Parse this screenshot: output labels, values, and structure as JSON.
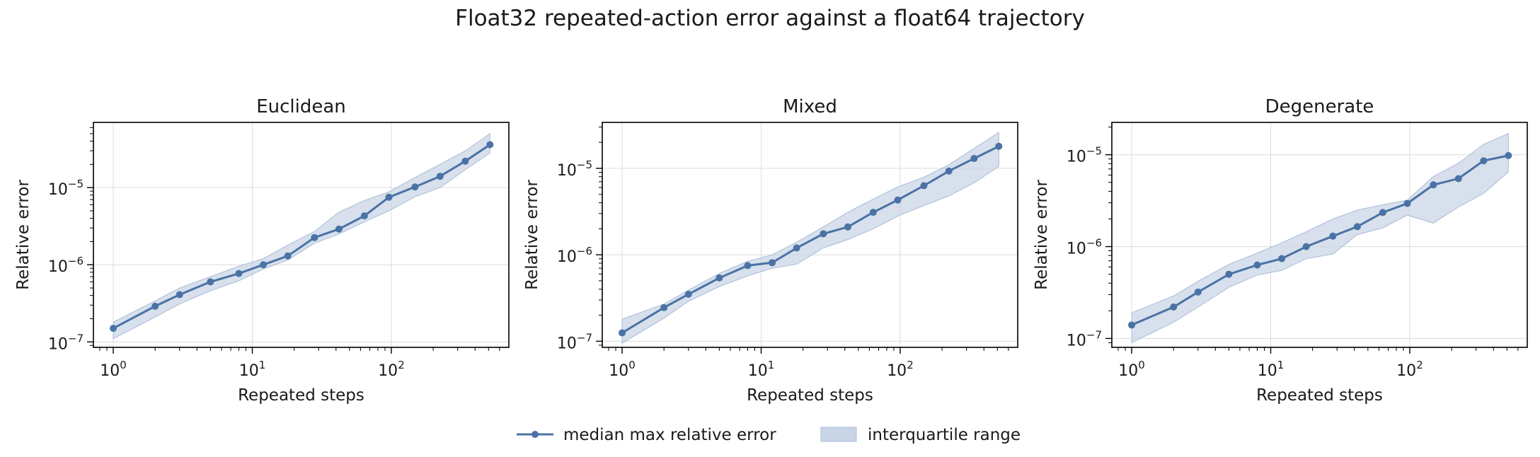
{
  "figure": {
    "title": "Float32 repeated-action error against a float64 trajectory",
    "legend": {
      "placement": "bottom-center",
      "entries": [
        {
          "key": "median",
          "label": "median max relative error"
        },
        {
          "key": "iqr",
          "label": "interquartile range"
        }
      ]
    },
    "colors": {
      "line": "#4a72a5",
      "band": "#c9d5e6",
      "band_edge": "#a8bcd8"
    }
  },
  "chart_data": [
    {
      "type": "line",
      "title": "Euclidean",
      "xlabel": "Repeated steps",
      "ylabel": "Relative error",
      "xscale": "log",
      "yscale": "log",
      "xlim": [
        0.72,
        700
      ],
      "ylim": [
        8.5e-08,
        7e-05
      ],
      "xticks": [
        1,
        10,
        100
      ],
      "yticks": [
        1e-07,
        1e-06,
        1e-05
      ],
      "grid": true,
      "x": [
        1,
        2,
        3,
        5,
        8,
        12,
        18,
        28,
        42,
        64,
        96,
        148,
        224,
        340,
        512
      ],
      "series": [
        {
          "key": "median",
          "values": [
            1.5e-07,
            2.9e-07,
            4.1e-07,
            6e-07,
            7.7e-07,
            1e-06,
            1.3e-06,
            2.25e-06,
            2.9e-06,
            4.3e-06,
            7.5e-06,
            1.02e-05,
            1.4e-05,
            2.2e-05,
            3.6e-05
          ]
        },
        {
          "key": "iqr",
          "lower": [
            1.1e-07,
            2.1e-07,
            3.1e-07,
            4.6e-07,
            6.2e-07,
            8.8e-07,
            1.15e-06,
            1.9e-06,
            2.5e-06,
            3.6e-06,
            5e-06,
            7.6e-06,
            1e-05,
            1.7e-05,
            2.8e-05
          ],
          "upper": [
            1.8e-07,
            3.4e-07,
            5e-07,
            7e-07,
            9.6e-07,
            1.2e-06,
            1.8e-06,
            2.7e-06,
            4.8e-06,
            6.8e-06,
            8.8e-06,
            1.35e-05,
            2e-05,
            3e-05,
            5e-05
          ]
        }
      ]
    },
    {
      "type": "line",
      "title": "Mixed",
      "xlabel": "Repeated steps",
      "ylabel": "Relative error",
      "xscale": "log",
      "yscale": "log",
      "xlim": [
        0.72,
        700
      ],
      "ylim": [
        8.5e-08,
        3.4e-05
      ],
      "xticks": [
        1,
        10,
        100
      ],
      "yticks": [
        1e-07,
        1e-06,
        1e-05
      ],
      "grid": true,
      "x": [
        1,
        2,
        3,
        5,
        8,
        12,
        18,
        28,
        42,
        64,
        96,
        148,
        224,
        340,
        512
      ],
      "series": [
        {
          "key": "median",
          "values": [
            1.25e-07,
            2.45e-07,
            3.5e-07,
            5.4e-07,
            7.5e-07,
            8.1e-07,
            1.2e-06,
            1.75e-06,
            2.1e-06,
            3.1e-06,
            4.3e-06,
            6.3e-06,
            9.3e-06,
            1.3e-05,
            1.8e-05
          ]
        },
        {
          "key": "iqr",
          "lower": [
            9.5e-08,
            1.85e-07,
            2.9e-07,
            4.3e-07,
            5.7e-07,
            7e-07,
            7.8e-07,
            1.2e-06,
            1.5e-06,
            2e-06,
            2.8e-06,
            3.7e-06,
            4.8e-06,
            6.8e-06,
            1.05e-05
          ]
        },
        {
          "key": "iqr_upper",
          "upper": [
            1.8e-07,
            2.7e-07,
            3.9e-07,
            6.1e-07,
            8.4e-07,
            1e-06,
            1.4e-06,
            2.1e-06,
            3.1e-06,
            4.4e-06,
            6.1e-06,
            7.9e-06,
            1.1e-05,
            1.7e-05,
            2.6e-05
          ]
        }
      ]
    },
    {
      "type": "line",
      "title": "Degenerate",
      "xlabel": "Repeated steps",
      "ylabel": "Relative error",
      "xscale": "log",
      "yscale": "log",
      "xlim": [
        0.72,
        700
      ],
      "ylim": [
        8e-08,
        2.25e-05
      ],
      "xticks": [
        1,
        10,
        100
      ],
      "yticks": [
        1e-07,
        1e-06,
        1e-05
      ],
      "grid": true,
      "x": [
        1,
        2,
        3,
        5,
        8,
        12,
        18,
        28,
        42,
        64,
        96,
        148,
        224,
        340,
        512
      ],
      "series": [
        {
          "key": "median",
          "values": [
            1.4e-07,
            2.2e-07,
            3.2e-07,
            5e-07,
            6.3e-07,
            7.4e-07,
            1e-06,
            1.3e-06,
            1.65e-06,
            2.35e-06,
            2.95e-06,
            4.7e-06,
            5.5e-06,
            8.6e-06,
            9.8e-06
          ]
        },
        {
          "key": "iqr",
          "lower": [
            9e-08,
            1.5e-07,
            2.2e-07,
            3.6e-07,
            4.9e-07,
            5.5e-07,
            7.4e-07,
            8.3e-07,
            1.35e-06,
            1.6e-06,
            2.2e-06,
            1.8e-06,
            2.7e-06,
            3.8e-06,
            6.5e-06
          ]
        },
        {
          "key": "iqr_upper",
          "upper": [
            1.9e-07,
            2.9e-07,
            4.2e-07,
            6.4e-07,
            8.5e-07,
            1.1e-06,
            1.45e-06,
            2e-06,
            2.5e-06,
            2.85e-06,
            3.2e-06,
            5.8e-06,
            8.1e-06,
            1.3e-05,
            1.7e-05
          ]
        }
      ]
    }
  ]
}
